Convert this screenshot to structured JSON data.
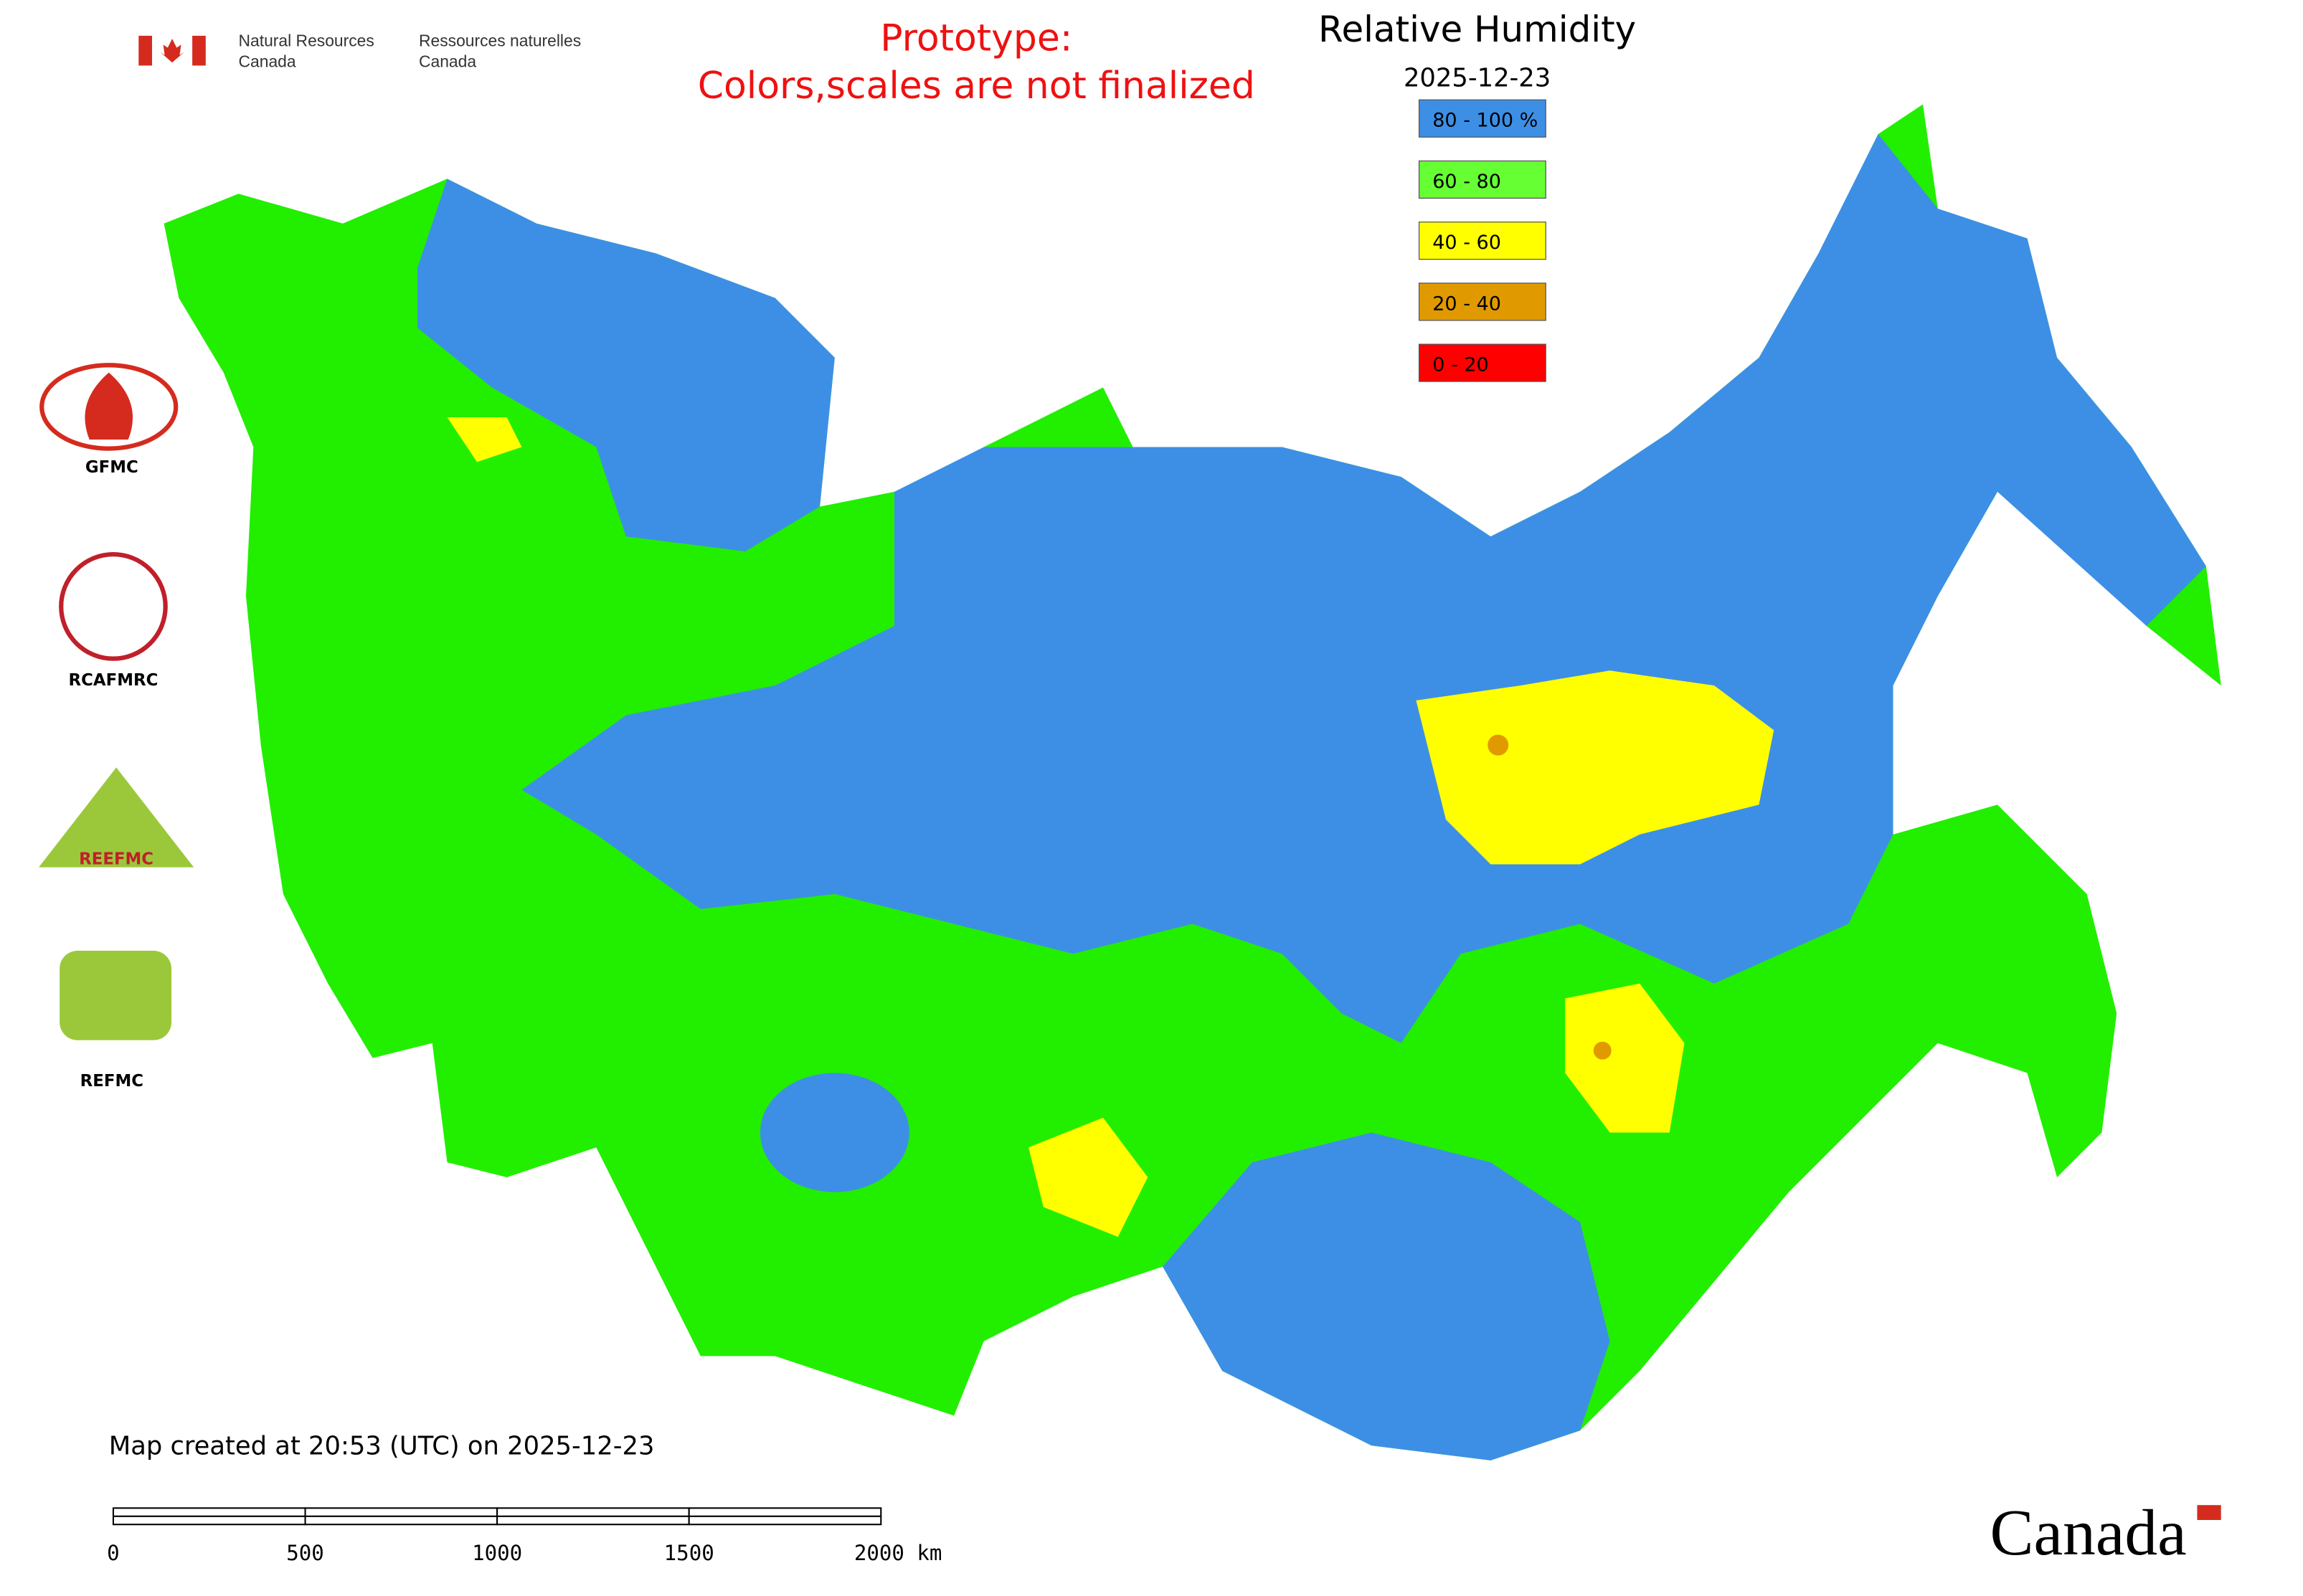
{
  "header": {
    "agency_en": [
      "Natural Resources",
      "Canada"
    ],
    "agency_fr": [
      "Ressources naturelles",
      "Canada"
    ],
    "notice": [
      "Prototype:",
      "Colors,scales are not finalized"
    ]
  },
  "legend": {
    "title": "Relative Humidity",
    "date": "2025-12-23",
    "items": [
      {
        "label": "80 - 100 %",
        "color": "#3d8fe6"
      },
      {
        "label": "60 - 80",
        "color": "#66ff33"
      },
      {
        "label": "40 - 60",
        "color": "#ffff00"
      },
      {
        "label": "20 - 40",
        "color": "#e09a00"
      },
      {
        "label": "0 - 20",
        "color": "#ff0000"
      }
    ]
  },
  "logos": [
    "GFMC",
    "RCAFMRC",
    "REEFMC",
    "REFMC"
  ],
  "footer": {
    "created": "Map created at 20:53 (UTC) on 2025-12-23",
    "scale_labels": [
      "0",
      "500",
      "1000",
      "1500",
      "2000 km"
    ],
    "wordmark": "Canada"
  }
}
